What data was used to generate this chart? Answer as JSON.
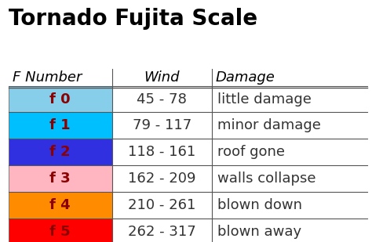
{
  "title": "Tornado Fujita Scale",
  "header": [
    "F Number",
    "Wind",
    "Damage"
  ],
  "rows": [
    {
      "label": "f 0",
      "wind": "45 - 78",
      "damage": "little damage",
      "color": "#87CEEB"
    },
    {
      "label": "f 1",
      "wind": "79 - 117",
      "damage": "minor damage",
      "color": "#00BFFF"
    },
    {
      "label": "f 2",
      "wind": "118 - 161",
      "damage": "roof gone",
      "color": "#3030E0"
    },
    {
      "label": "f 3",
      "wind": "162 - 209",
      "damage": "walls collapse",
      "color": "#FFB6C1"
    },
    {
      "label": "f 4",
      "wind": "210 - 261",
      "damage": "blown down",
      "color": "#FF8C00"
    },
    {
      "label": "f 5",
      "wind": "262 - 317",
      "damage": "blown away",
      "color": "#FF0000"
    }
  ],
  "bg_color": "#FFFFFF",
  "title_fontsize": 20,
  "header_fontsize": 13,
  "row_fontsize": 13,
  "label_text_color": "#8B0000",
  "header_text_color": "#000000",
  "cell_text_color": "#333333"
}
